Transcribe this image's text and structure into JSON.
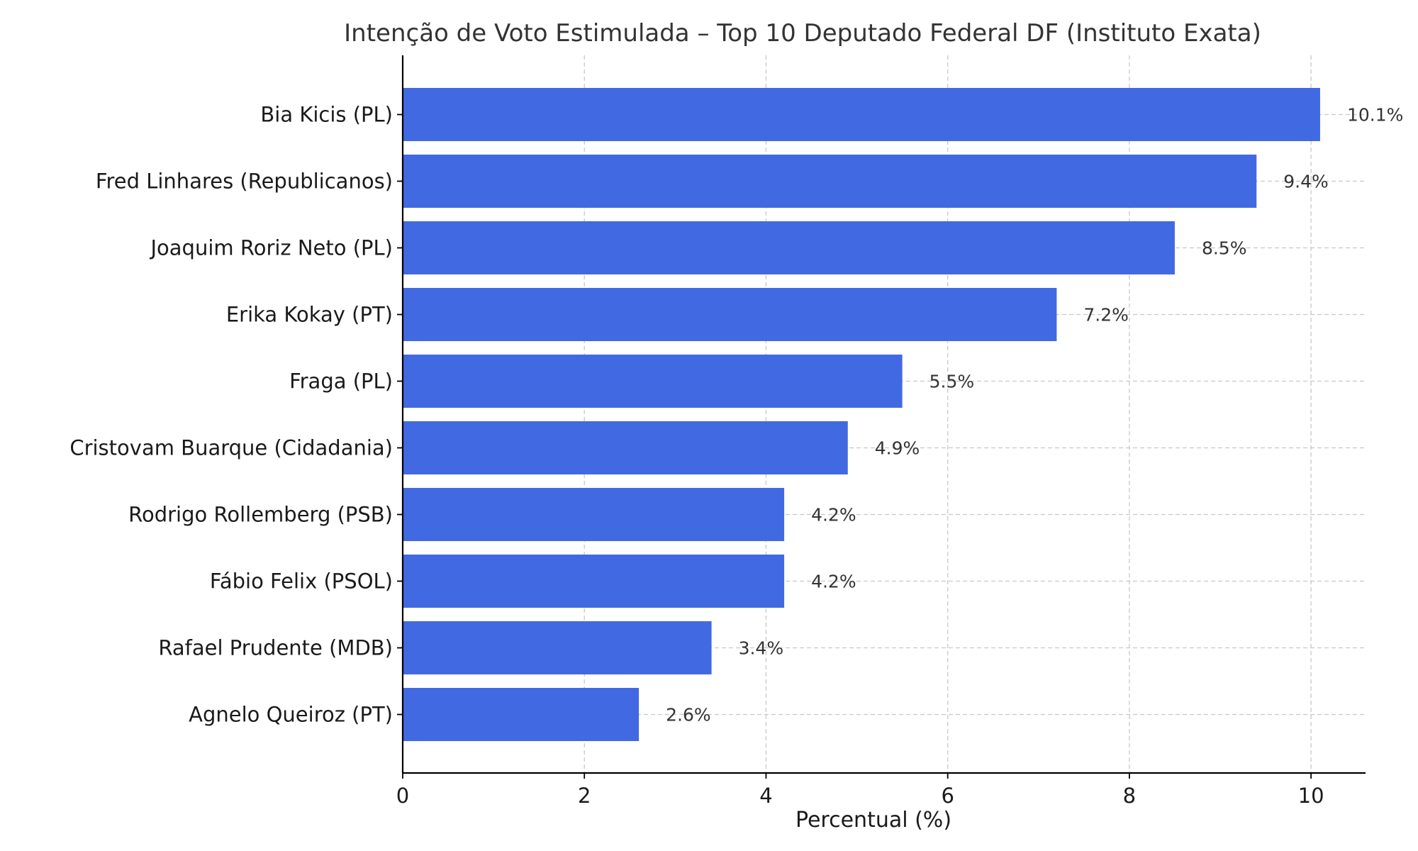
{
  "chart_data": {
    "type": "bar",
    "orientation": "horizontal",
    "title": "Intenção de Voto Estimulada – Top 10 Deputado Federal DF (Instituto Exata)",
    "xlabel": "Percentual (%)",
    "ylabel": "",
    "xlim": [
      0,
      10.6
    ],
    "xticks": [
      0,
      2,
      4,
      6,
      8,
      10
    ],
    "grid": true,
    "bar_color": "#4169E1",
    "categories": [
      "Bia Kicis (PL)",
      "Fred Linhares (Republicanos)",
      "Joaquim Roriz Neto (PL)",
      "Erika Kokay (PT)",
      "Fraga (PL)",
      "Cristovam Buarque (Cidadania)",
      "Rodrigo Rollemberg (PSB)",
      "Fábio Felix (PSOL)",
      "Rafael Prudente (MDB)",
      "Agnelo Queiroz (PT)"
    ],
    "values": [
      10.1,
      9.4,
      8.5,
      7.2,
      5.5,
      4.9,
      4.2,
      4.2,
      3.4,
      2.6
    ],
    "value_labels": [
      "10.1%",
      "9.4%",
      "8.5%",
      "7.2%",
      "5.5%",
      "4.9%",
      "4.2%",
      "4.2%",
      "3.4%",
      "2.6%"
    ]
  }
}
